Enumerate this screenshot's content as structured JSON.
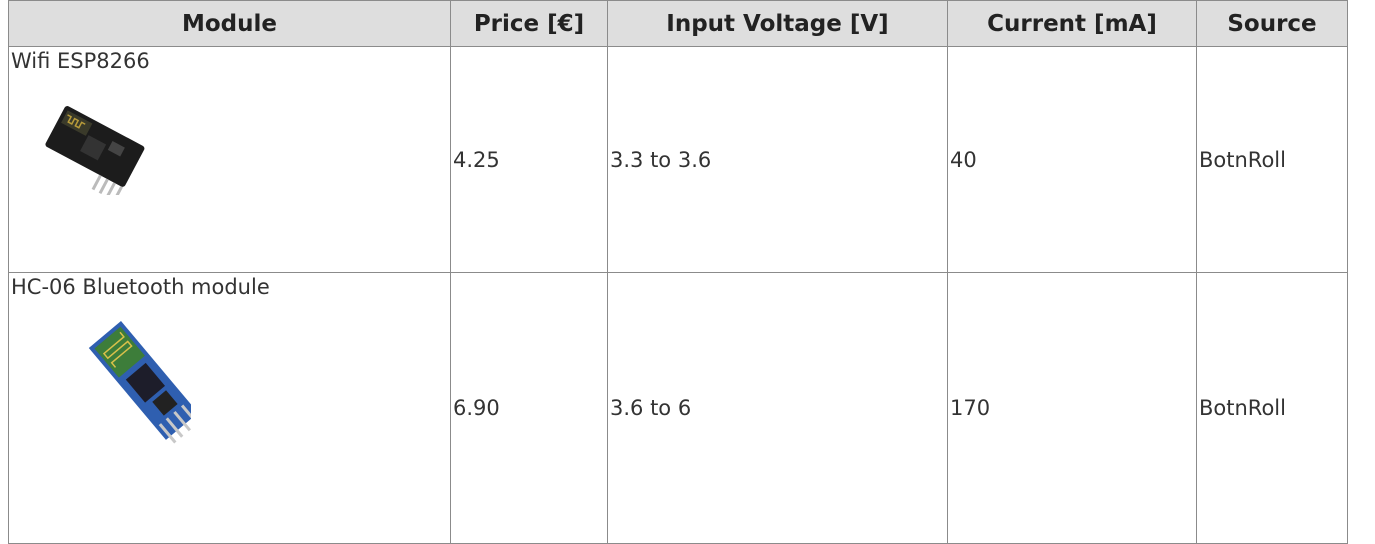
{
  "table": {
    "header": [
      "Module",
      "Price [€]",
      "Input Voltage [V]",
      "Current [mA]",
      "Source"
    ],
    "rows": [
      [
        "Wifi ESP8266",
        "4.25",
        "3.3 to 3.6",
        "40",
        "BotnRoll"
      ],
      [
        "HC-06 Bluetooth module",
        "6.90",
        "3.6 to 6",
        "170",
        "BotnRoll"
      ]
    ]
  }
}
